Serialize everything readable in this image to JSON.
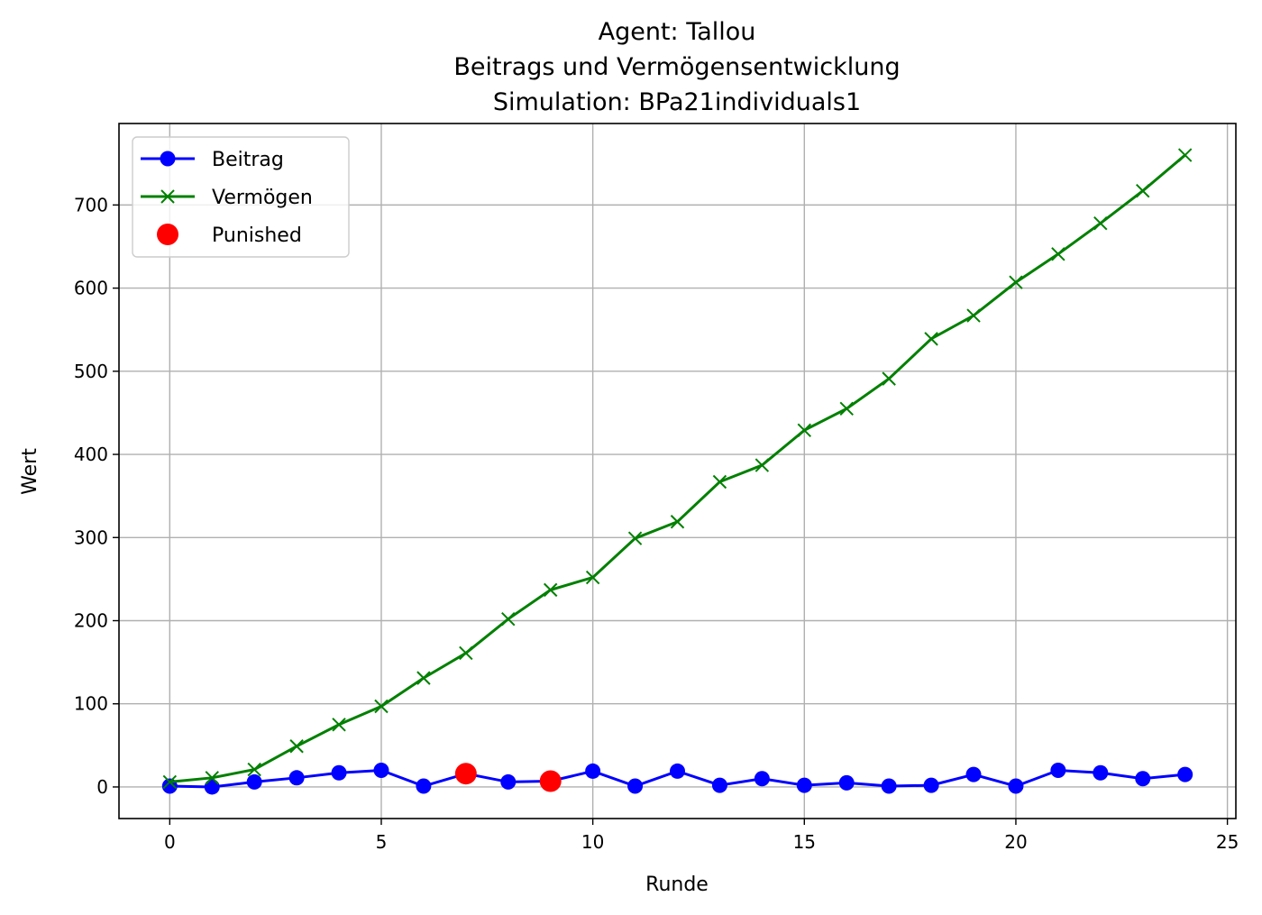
{
  "chart_data": {
    "type": "line",
    "title": [
      "Agent: Tallou",
      "Beitrags und Vermögensentwicklung",
      "Simulation: BPa21individuals1"
    ],
    "xlabel": "Runde",
    "ylabel": "Wert",
    "xlim": [
      -1.2,
      25.2
    ],
    "ylim": [
      -38,
      798
    ],
    "xticks": [
      0,
      5,
      10,
      15,
      20,
      25
    ],
    "yticks": [
      0,
      100,
      200,
      300,
      400,
      500,
      600,
      700
    ],
    "grid": true,
    "legend_position": "top-left",
    "x": [
      0,
      1,
      2,
      3,
      4,
      5,
      6,
      7,
      8,
      9,
      10,
      11,
      12,
      13,
      14,
      15,
      16,
      17,
      18,
      19,
      20,
      21,
      22,
      23,
      24
    ],
    "series": [
      {
        "name": "Beitrag",
        "color": "#0000ff",
        "marker": "circle",
        "values": [
          1,
          0,
          6,
          11,
          17,
          20,
          1,
          16,
          6,
          7,
          19,
          1,
          19,
          2,
          10,
          2,
          5,
          1,
          2,
          15,
          1,
          20,
          17,
          10,
          15
        ]
      },
      {
        "name": "Vermögen",
        "color": "#008000",
        "marker": "x",
        "values": [
          6,
          11,
          21,
          49,
          75,
          97,
          131,
          161,
          202,
          237,
          252,
          299,
          319,
          367,
          387,
          429,
          455,
          491,
          539,
          567,
          607,
          641,
          678,
          717,
          760
        ]
      },
      {
        "name": "Punished",
        "color": "#ff0000",
        "marker": "big-circle",
        "type": "scatter",
        "points": [
          [
            7,
            16
          ],
          [
            9,
            7
          ]
        ]
      }
    ]
  }
}
